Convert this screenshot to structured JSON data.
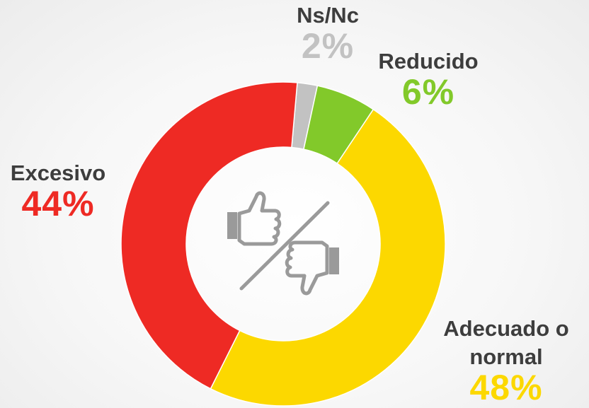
{
  "chart_data": {
    "type": "donut",
    "categories": [
      "Ns/Nc",
      "Reducido",
      "Adecuado o normal",
      "Excesivo"
    ],
    "values": [
      2,
      6,
      48,
      44
    ],
    "value_labels": [
      "2%",
      "6%",
      "48%",
      "44%"
    ],
    "colors": [
      "#c2c2c2",
      "#82c92a",
      "#fcd800",
      "#ee2a24"
    ]
  }
}
